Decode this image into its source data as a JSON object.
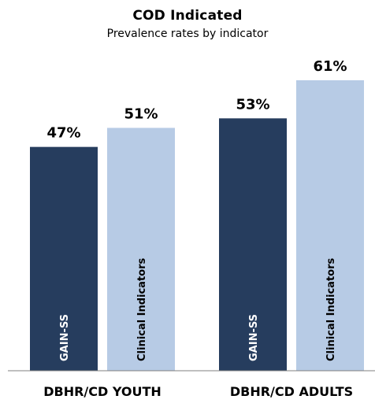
{
  "chart_data": {
    "type": "bar",
    "title": "COD Indicated",
    "subtitle": "Prevalence rates by indicator",
    "categories": [
      "DBHR/CD YOUTH",
      "DBHR/CD ADULTS"
    ],
    "series": [
      {
        "name": "GAIN-SS",
        "bar_label": "GAIN-SS",
        "values": [
          47,
          53
        ],
        "value_labels": [
          "47%",
          "53%"
        ],
        "color": "#263d5e"
      },
      {
        "name": "Clinical Indicators",
        "bar_label": "Clinical Indicators",
        "values": [
          51,
          61
        ],
        "value_labels": [
          "51%",
          "61%"
        ],
        "color": "#b7cbe5"
      }
    ],
    "ylim": [
      0,
      100
    ],
    "grid": false,
    "legend": "none",
    "xlabel": "",
    "ylabel": ""
  }
}
